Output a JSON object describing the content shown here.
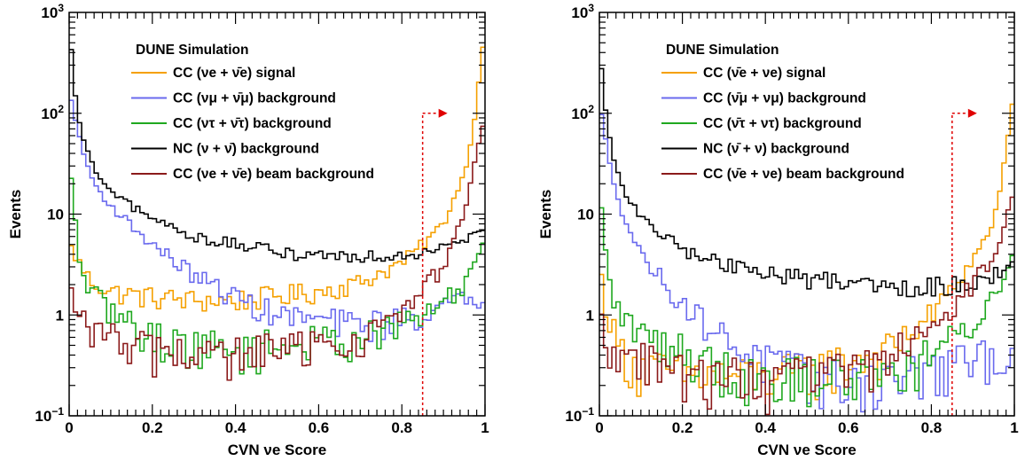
{
  "chart_data": [
    {
      "type": "histogram",
      "yscale": "log",
      "xlim": [
        0,
        1
      ],
      "ylim": [
        0.1,
        1000
      ],
      "xlabel": "CVN νe Score",
      "ylabel": "Events",
      "x_ticks": [
        "0",
        "0.2",
        "0.4",
        "0.6",
        "0.8",
        "1"
      ],
      "y_ticks": [
        "10⁻¹",
        "1",
        "10",
        "10²",
        "10³"
      ],
      "annotation": "DUNE Simulation",
      "legend_position": "top-center",
      "cut": {
        "x": 0.85,
        "arrow": "right"
      },
      "bins": 100,
      "series": [
        {
          "name": "CC (νe + ν̄e) signal",
          "color": "#f5a000",
          "anchors": [
            [
              0.0,
              5
            ],
            [
              0.02,
              3.5
            ],
            [
              0.05,
              2.2
            ],
            [
              0.1,
              1.7
            ],
            [
              0.2,
              1.5
            ],
            [
              0.3,
              1.4
            ],
            [
              0.4,
              1.4
            ],
            [
              0.5,
              1.55
            ],
            [
              0.6,
              1.7
            ],
            [
              0.7,
              2.1
            ],
            [
              0.8,
              3.3
            ],
            [
              0.85,
              5
            ],
            [
              0.9,
              8
            ],
            [
              0.95,
              25
            ],
            [
              0.97,
              60
            ],
            [
              0.99,
              300
            ],
            [
              1.0,
              700
            ]
          ]
        },
        {
          "name": "CC (νμ + ν̄μ) background",
          "color": "#6a6aee",
          "anchors": [
            [
              0.0,
              160
            ],
            [
              0.01,
              110
            ],
            [
              0.03,
              45
            ],
            [
              0.06,
              20
            ],
            [
              0.1,
              12
            ],
            [
              0.2,
              5
            ],
            [
              0.3,
              2.5
            ],
            [
              0.4,
              1.5
            ],
            [
              0.5,
              1
            ],
            [
              0.6,
              0.9
            ],
            [
              0.7,
              0.8
            ],
            [
              0.8,
              0.9
            ],
            [
              0.9,
              1.2
            ],
            [
              1.0,
              1.6
            ]
          ]
        },
        {
          "name": "CC (ντ + ν̄τ) background",
          "color": "#1fa81f",
          "anchors": [
            [
              0.0,
              40
            ],
            [
              0.01,
              12
            ],
            [
              0.03,
              2.5
            ],
            [
              0.06,
              1.6
            ],
            [
              0.1,
              1.1
            ],
            [
              0.2,
              0.6
            ],
            [
              0.3,
              0.5
            ],
            [
              0.4,
              0.45
            ],
            [
              0.5,
              0.5
            ],
            [
              0.6,
              0.55
            ],
            [
              0.7,
              0.6
            ],
            [
              0.8,
              0.8
            ],
            [
              0.9,
              1.3
            ],
            [
              0.95,
              2
            ],
            [
              1.0,
              6
            ]
          ]
        },
        {
          "name": "NC (ν + ν̄) background",
          "color": "#000000",
          "anchors": [
            [
              0.0,
              900
            ],
            [
              0.01,
              200
            ],
            [
              0.03,
              60
            ],
            [
              0.06,
              28
            ],
            [
              0.1,
              16
            ],
            [
              0.2,
              9
            ],
            [
              0.3,
              6
            ],
            [
              0.4,
              5
            ],
            [
              0.5,
              4.2
            ],
            [
              0.6,
              4
            ],
            [
              0.7,
              3.8
            ],
            [
              0.8,
              4
            ],
            [
              0.85,
              4.3
            ],
            [
              0.9,
              5
            ],
            [
              1.0,
              7
            ]
          ]
        },
        {
          "name": "CC (νe + ν̄e) beam background",
          "color": "#8b1a1a",
          "anchors": [
            [
              0.0,
              2
            ],
            [
              0.02,
              0.9
            ],
            [
              0.1,
              0.6
            ],
            [
              0.2,
              0.45
            ],
            [
              0.3,
              0.4
            ],
            [
              0.4,
              0.4
            ],
            [
              0.5,
              0.45
            ],
            [
              0.6,
              0.5
            ],
            [
              0.7,
              0.6
            ],
            [
              0.8,
              1
            ],
            [
              0.85,
              1.8
            ],
            [
              0.9,
              3
            ],
            [
              0.95,
              10
            ],
            [
              0.98,
              40
            ],
            [
              1.0,
              90
            ]
          ]
        }
      ]
    },
    {
      "type": "histogram",
      "yscale": "log",
      "xlim": [
        0,
        1
      ],
      "ylim": [
        0.1,
        1000
      ],
      "xlabel": "CVN νe Score",
      "ylabel": "Events",
      "x_ticks": [
        "0",
        "0.2",
        "0.4",
        "0.6",
        "0.8",
        "1"
      ],
      "y_ticks": [
        "10⁻¹",
        "1",
        "10",
        "10²",
        "10³"
      ],
      "annotation": "DUNE Simulation",
      "legend_position": "top-center",
      "cut": {
        "x": 0.85,
        "arrow": "right"
      },
      "bins": 100,
      "series": [
        {
          "name": "CC (ν̄e + νe) signal",
          "color": "#f5a000",
          "anchors": [
            [
              0.0,
              3
            ],
            [
              0.02,
              1
            ],
            [
              0.05,
              0.45
            ],
            [
              0.1,
              0.3
            ],
            [
              0.2,
              0.26
            ],
            [
              0.3,
              0.25
            ],
            [
              0.4,
              0.25
            ],
            [
              0.5,
              0.28
            ],
            [
              0.6,
              0.35
            ],
            [
              0.7,
              0.45
            ],
            [
              0.8,
              1
            ],
            [
              0.85,
              1.8
            ],
            [
              0.9,
              3.5
            ],
            [
              0.95,
              8
            ],
            [
              0.98,
              40
            ],
            [
              1.0,
              180
            ]
          ]
        },
        {
          "name": "CC (ν̄μ + νμ) background",
          "color": "#6a6aee",
          "anchors": [
            [
              0.0,
              130
            ],
            [
              0.01,
              70
            ],
            [
              0.03,
              25
            ],
            [
              0.06,
              9
            ],
            [
              0.1,
              4
            ],
            [
              0.2,
              1.3
            ],
            [
              0.3,
              0.6
            ],
            [
              0.4,
              0.35
            ],
            [
              0.5,
              0.25
            ],
            [
              0.6,
              0.22
            ],
            [
              0.7,
              0.24
            ],
            [
              0.8,
              0.28
            ],
            [
              0.9,
              0.35
            ],
            [
              1.0,
              0.45
            ]
          ]
        },
        {
          "name": "CC (ν̄τ + ντ) background",
          "color": "#1fa81f",
          "anchors": [
            [
              0.0,
              20
            ],
            [
              0.01,
              6
            ],
            [
              0.03,
              1.5
            ],
            [
              0.06,
              0.9
            ],
            [
              0.1,
              0.65
            ],
            [
              0.2,
              0.45
            ],
            [
              0.3,
              0.3
            ],
            [
              0.4,
              0.25
            ],
            [
              0.5,
              0.25
            ],
            [
              0.6,
              0.25
            ],
            [
              0.7,
              0.28
            ],
            [
              0.8,
              0.4
            ],
            [
              0.9,
              0.8
            ],
            [
              0.95,
              1.5
            ],
            [
              1.0,
              4
            ]
          ]
        },
        {
          "name": "NC (ν̄ + ν) background",
          "color": "#000000",
          "anchors": [
            [
              0.0,
              500
            ],
            [
              0.01,
              150
            ],
            [
              0.03,
              40
            ],
            [
              0.06,
              17
            ],
            [
              0.1,
              9
            ],
            [
              0.2,
              4.5
            ],
            [
              0.3,
              3.2
            ],
            [
              0.4,
              2.6
            ],
            [
              0.5,
              2.3
            ],
            [
              0.6,
              2.2
            ],
            [
              0.7,
              2
            ],
            [
              0.8,
              1.9
            ],
            [
              0.85,
              2
            ],
            [
              0.9,
              2.2
            ],
            [
              1.0,
              3
            ]
          ]
        },
        {
          "name": "CC (ν̄e + νe) beam background",
          "color": "#8b1a1a",
          "anchors": [
            [
              0.0,
              1
            ],
            [
              0.02,
              0.5
            ],
            [
              0.1,
              0.35
            ],
            [
              0.2,
              0.27
            ],
            [
              0.3,
              0.25
            ],
            [
              0.4,
              0.22
            ],
            [
              0.5,
              0.25
            ],
            [
              0.6,
              0.3
            ],
            [
              0.7,
              0.4
            ],
            [
              0.8,
              0.7
            ],
            [
              0.85,
              1.2
            ],
            [
              0.9,
              2
            ],
            [
              0.95,
              4
            ],
            [
              0.98,
              8
            ],
            [
              1.0,
              20
            ]
          ]
        }
      ]
    }
  ]
}
